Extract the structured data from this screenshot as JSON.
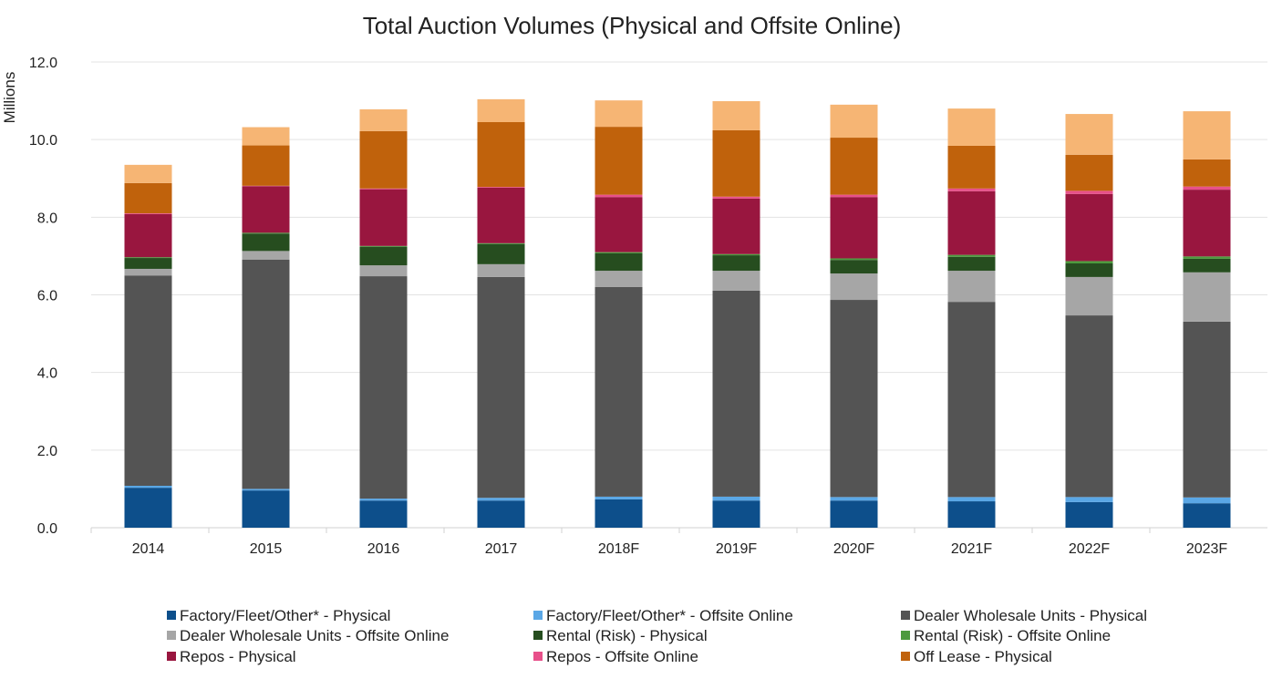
{
  "chart_data": {
    "type": "bar",
    "stacked": true,
    "title": "Total Auction Volumes (Physical and Offsite Online)",
    "xlabel": "",
    "ylabel": "Millions",
    "ylim": [
      0,
      12
    ],
    "yticks": [
      "0.0",
      "2.0",
      "4.0",
      "6.0",
      "8.0",
      "10.0",
      "12.0"
    ],
    "grid": true,
    "legend_position": "bottom",
    "categories": [
      "2014",
      "2015",
      "2016",
      "2017",
      "2018F",
      "2019F",
      "2020F",
      "2021F",
      "2022F",
      "2023F"
    ],
    "series": [
      {
        "name": "Factory/Fleet/Other* - Physical",
        "color": "#0d4f8b",
        "values": [
          1.03,
          0.96,
          0.7,
          0.7,
          0.73,
          0.7,
          0.7,
          0.68,
          0.66,
          0.63
        ]
      },
      {
        "name": "Factory/Fleet/Other* - Offsite Online",
        "color": "#5aa7e6",
        "values": [
          0.05,
          0.04,
          0.05,
          0.07,
          0.07,
          0.1,
          0.09,
          0.11,
          0.13,
          0.15
        ]
      },
      {
        "name": "Dealer Wholesale Units - Physical",
        "color": "#545454",
        "values": [
          5.42,
          5.91,
          5.73,
          5.69,
          5.4,
          5.31,
          5.08,
          5.03,
          4.68,
          4.53
        ]
      },
      {
        "name": "Dealer Wholesale Units - Offsite Online",
        "color": "#a6a6a6",
        "values": [
          0.17,
          0.22,
          0.28,
          0.33,
          0.42,
          0.51,
          0.68,
          0.8,
          0.99,
          1.27
        ]
      },
      {
        "name": "Rental (Risk) - Physical",
        "color": "#264d1f",
        "values": [
          0.28,
          0.45,
          0.48,
          0.52,
          0.45,
          0.4,
          0.35,
          0.36,
          0.35,
          0.35
        ]
      },
      {
        "name": "Rental (Risk) - Offsite Online",
        "color": "#4d9a3e",
        "values": [
          0.02,
          0.02,
          0.02,
          0.02,
          0.03,
          0.03,
          0.04,
          0.05,
          0.06,
          0.06
        ]
      },
      {
        "name": "Repos - Physical",
        "color": "#99163f",
        "values": [
          1.11,
          1.2,
          1.46,
          1.43,
          1.42,
          1.43,
          1.58,
          1.64,
          1.73,
          1.72
        ]
      },
      {
        "name": "Repos - Offsite Online",
        "color": "#e8508a",
        "values": [
          0.02,
          0.01,
          0.02,
          0.02,
          0.06,
          0.05,
          0.06,
          0.07,
          0.08,
          0.08
        ]
      },
      {
        "name": "Off Lease - Physical",
        "color": "#c0620c",
        "values": [
          0.78,
          1.04,
          1.48,
          1.67,
          1.75,
          1.71,
          1.47,
          1.1,
          0.93,
          0.7
        ]
      },
      {
        "color": "#f6b574",
        "values": [
          0.47,
          0.47,
          0.56,
          0.59,
          0.68,
          0.75,
          0.85,
          0.96,
          1.05,
          1.24
        ]
      }
    ]
  }
}
